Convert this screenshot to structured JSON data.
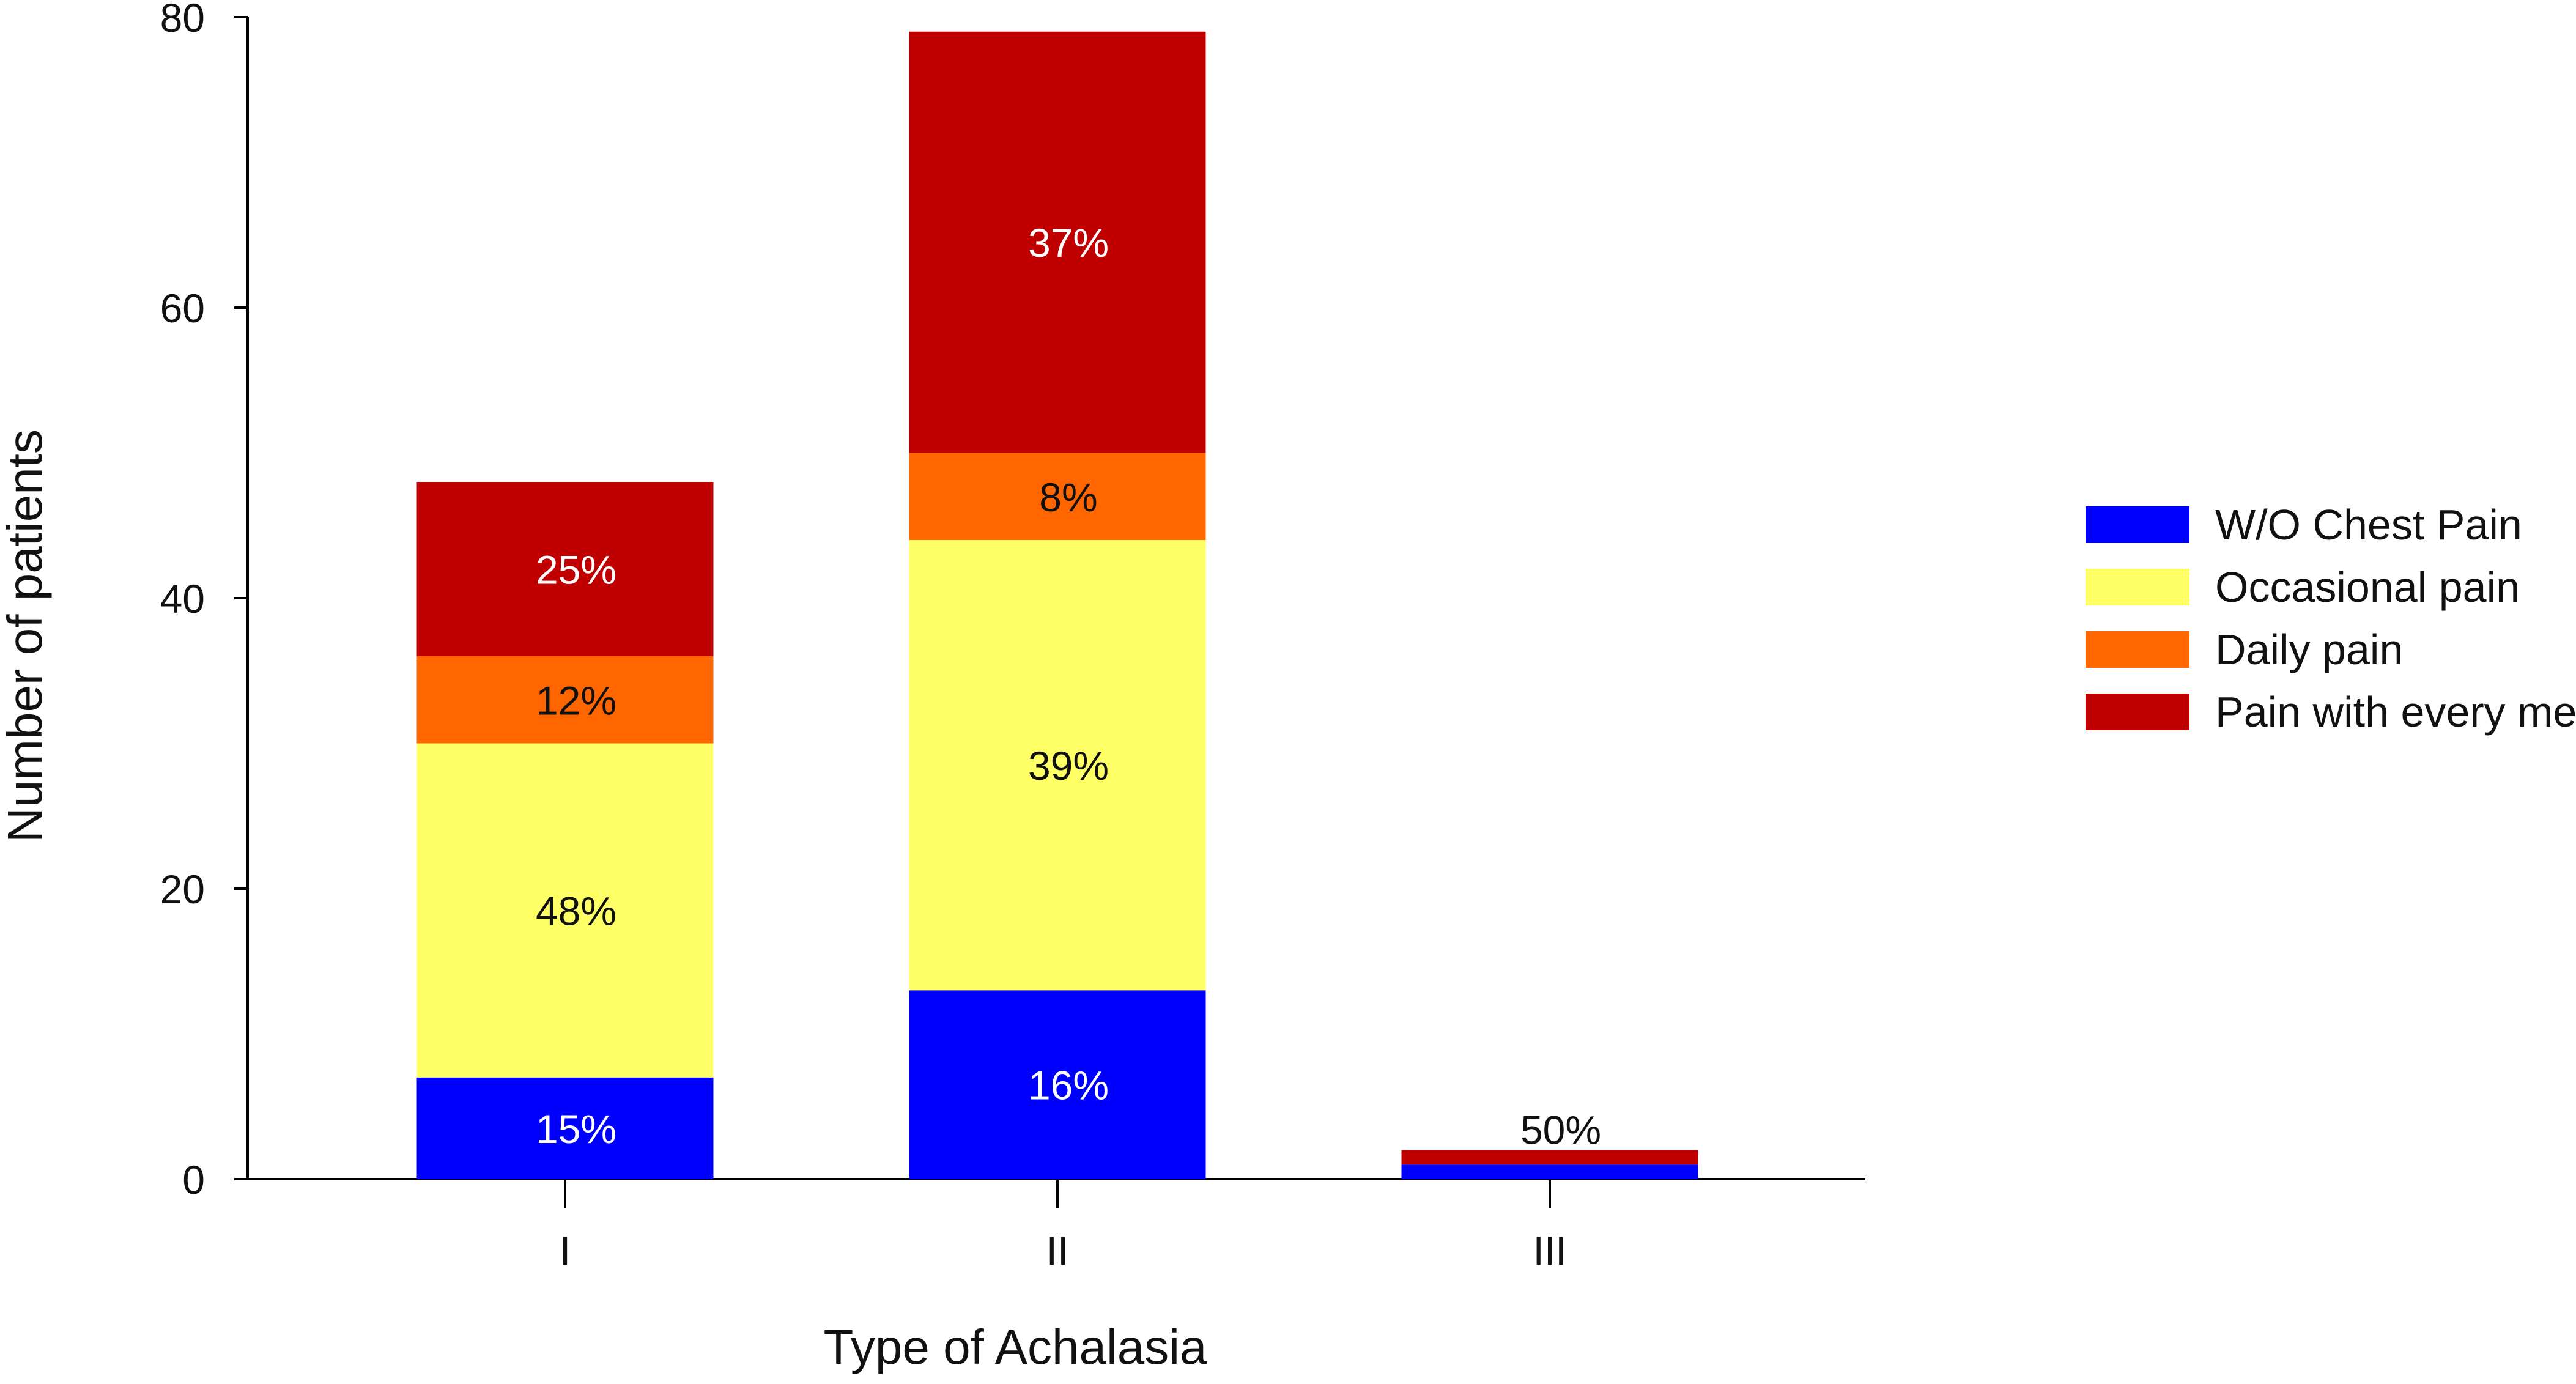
{
  "chart_data": {
    "type": "bar",
    "stacked": true,
    "title": "",
    "xlabel": "Type of Achalasia",
    "ylabel": "Number of patients",
    "ylim": [
      0,
      80
    ],
    "yticks": [
      0,
      20,
      40,
      60,
      80
    ],
    "categories": [
      "I",
      "II",
      "III"
    ],
    "grid": false,
    "legend_position": "right",
    "series": [
      {
        "name": "W/O Chest Pain",
        "color": "#0000ff",
        "label_color": "#ffffff",
        "values": [
          7,
          13,
          1
        ],
        "labels": [
          "15%",
          "16%",
          ""
        ]
      },
      {
        "name": "Occasional pain",
        "color": "#ffff66",
        "label_color": "#111111",
        "values": [
          23,
          31,
          0
        ],
        "labels": [
          "48%",
          "39%",
          ""
        ]
      },
      {
        "name": "Daily pain",
        "color": "#ff6600",
        "label_color": "#111111",
        "values": [
          6,
          6,
          0
        ],
        "labels": [
          "12%",
          "8%",
          ""
        ]
      },
      {
        "name": "Pain with every meal",
        "color": "#c00000",
        "label_color": "#ffffff",
        "values": [
          12,
          29,
          1
        ],
        "labels": [
          "25%",
          "37%",
          "50%"
        ]
      }
    ]
  }
}
